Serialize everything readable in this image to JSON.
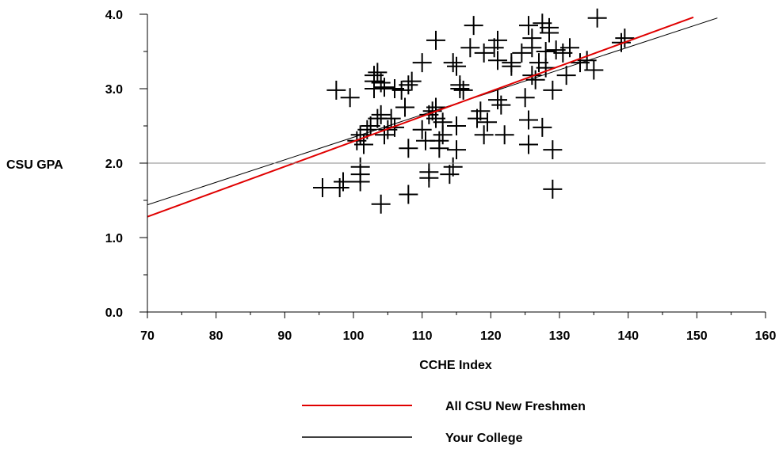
{
  "chart_data": {
    "type": "scatter",
    "xlabel": "CCHE Index",
    "ylabel": "CSU GPA",
    "xlim": [
      70,
      160
    ],
    "ylim": [
      0,
      4
    ],
    "x_ticks": [
      70,
      80,
      90,
      100,
      110,
      120,
      130,
      140,
      150,
      160
    ],
    "y_ticks": [
      0,
      1,
      2,
      3,
      4
    ],
    "x_tick_labels": [
      "70",
      "80",
      "90",
      "100",
      "110",
      "120",
      "130",
      "140",
      "150",
      "160"
    ],
    "y_tick_labels": [
      "0.0",
      "1.0",
      "2.0",
      "3.0",
      "4.0"
    ],
    "reference_line_y": 2.0,
    "marker": "plus",
    "points": [
      [
        95.5,
        1.67
      ],
      [
        98,
        1.67
      ],
      [
        98.5,
        1.75
      ],
      [
        101,
        1.75
      ],
      [
        101,
        1.85
      ],
      [
        101,
        1.95
      ],
      [
        101.5,
        2.25
      ],
      [
        97.5,
        2.98
      ],
      [
        99.5,
        2.88
      ],
      [
        100.5,
        2.3
      ],
      [
        101,
        2.38
      ],
      [
        102,
        2.45
      ],
      [
        102.5,
        2.5
      ],
      [
        103,
        3.18
      ],
      [
        103,
        3.1
      ],
      [
        103.5,
        3.22
      ],
      [
        103,
        3.0
      ],
      [
        104,
        3.08
      ],
      [
        104.5,
        3.02
      ],
      [
        106,
        3.0
      ],
      [
        103.5,
        2.6
      ],
      [
        104,
        2.65
      ],
      [
        104.5,
        2.38
      ],
      [
        105,
        2.45
      ],
      [
        105.5,
        2.6
      ],
      [
        106,
        2.48
      ],
      [
        104,
        1.45
      ],
      [
        107,
        2.98
      ],
      [
        108,
        3.05
      ],
      [
        108.5,
        3.1
      ],
      [
        107.5,
        2.75
      ],
      [
        108,
        2.2
      ],
      [
        108,
        1.58
      ],
      [
        110,
        3.35
      ],
      [
        110,
        2.45
      ],
      [
        110.5,
        2.3
      ],
      [
        111,
        2.65
      ],
      [
        111,
        1.8
      ],
      [
        111,
        1.88
      ],
      [
        111.5,
        2.7
      ],
      [
        112,
        2.75
      ],
      [
        112,
        2.6
      ],
      [
        112.5,
        2.3
      ],
      [
        112.5,
        2.2
      ],
      [
        112,
        3.65
      ],
      [
        113,
        2.55
      ],
      [
        113,
        2.38
      ],
      [
        114,
        1.85
      ],
      [
        114.5,
        1.95
      ],
      [
        114.5,
        3.35
      ],
      [
        115,
        3.3
      ],
      [
        115,
        2.5
      ],
      [
        115,
        2.18
      ],
      [
        115.5,
        3.0
      ],
      [
        115.5,
        3.05
      ],
      [
        116,
        2.98
      ],
      [
        117,
        3.55
      ],
      [
        117.5,
        3.85
      ],
      [
        118,
        2.6
      ],
      [
        118.5,
        2.7
      ],
      [
        119,
        2.38
      ],
      [
        119,
        3.48
      ],
      [
        119.5,
        2.55
      ],
      [
        120.5,
        3.55
      ],
      [
        121,
        3.65
      ],
      [
        121,
        3.38
      ],
      [
        121,
        2.85
      ],
      [
        121.5,
        2.78
      ],
      [
        122,
        2.38
      ],
      [
        123,
        3.3
      ],
      [
        123,
        3.35
      ],
      [
        124.5,
        3.48
      ],
      [
        125,
        2.88
      ],
      [
        125.5,
        2.58
      ],
      [
        125.5,
        2.25
      ],
      [
        125.5,
        3.85
      ],
      [
        126,
        3.68
      ],
      [
        126,
        3.55
      ],
      [
        126,
        3.18
      ],
      [
        126.5,
        3.12
      ],
      [
        127,
        3.35
      ],
      [
        127.5,
        3.88
      ],
      [
        127.5,
        2.48
      ],
      [
        128,
        3.5
      ],
      [
        128,
        3.28
      ],
      [
        128.5,
        3.82
      ],
      [
        128.5,
        3.75
      ],
      [
        129,
        2.98
      ],
      [
        129,
        2.18
      ],
      [
        129,
        1.65
      ],
      [
        129.5,
        3.52
      ],
      [
        130.5,
        3.48
      ],
      [
        131,
        3.18
      ],
      [
        131.5,
        3.55
      ],
      [
        133,
        3.35
      ],
      [
        134,
        3.38
      ],
      [
        135,
        3.25
      ],
      [
        135.5,
        3.95
      ],
      [
        139,
        3.62
      ],
      [
        139.5,
        3.68
      ]
    ],
    "series": [
      {
        "name": "All CSU New Freshmen",
        "color": "#e00000",
        "line": {
          "x": [
            70,
            149.5
          ],
          "y": [
            1.28,
            3.96
          ]
        }
      },
      {
        "name": "Your College",
        "color": "#000000",
        "line": {
          "x": [
            70,
            153
          ],
          "y": [
            1.44,
            3.95
          ]
        }
      }
    ],
    "legend_position": "bottom"
  }
}
